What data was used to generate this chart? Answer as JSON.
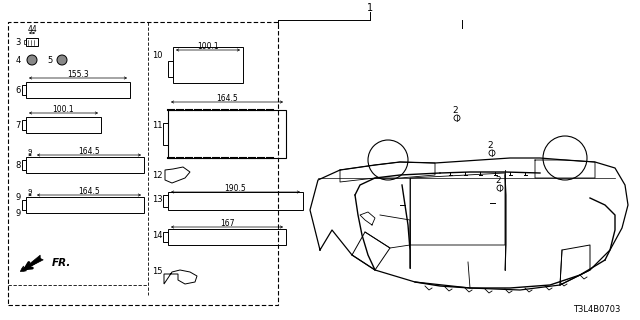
{
  "bg_color": "#ffffff",
  "lc": "#000000",
  "diagram_id": "T3L4B0703",
  "fr_label": "FR.",
  "label1": "1",
  "label2": "2",
  "parts": {
    "3": {
      "dim": "44"
    },
    "6": {
      "dim": "155.3"
    },
    "7": {
      "dim": "100.1"
    },
    "8": {
      "dim": "164.5",
      "dim2": "9"
    },
    "9": {
      "dim": "164.5",
      "dim2": "9"
    },
    "10": {
      "dim": "100.1"
    },
    "11": {
      "dim": "164.5"
    },
    "13": {
      "dim": "190.5"
    },
    "14": {
      "dim": "167"
    }
  }
}
